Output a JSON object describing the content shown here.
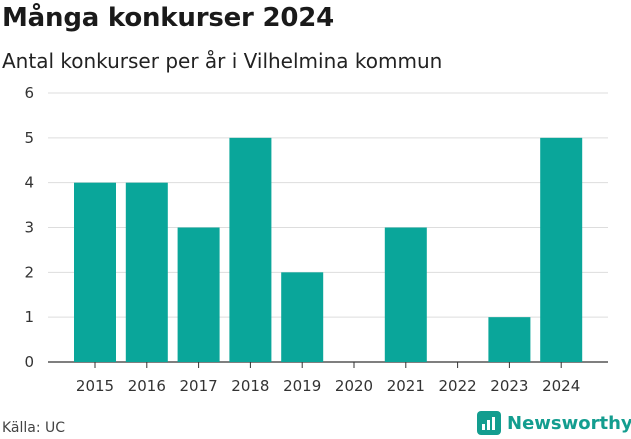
{
  "header": {
    "title": "Många konkurser 2024",
    "subtitle": "Antal konkurser per år i Vilhelmina kommun"
  },
  "footer": {
    "source": "Källa: UC",
    "brand": "Newsworthy"
  },
  "colors": {
    "bar": "#0aa69a",
    "grid": "#dddddd",
    "axis": "#333333",
    "brand": "#139d8f"
  },
  "chart_data": {
    "type": "bar",
    "categories": [
      "2015",
      "2016",
      "2017",
      "2018",
      "2019",
      "2020",
      "2021",
      "2022",
      "2023",
      "2024"
    ],
    "values": [
      4,
      4,
      3,
      5,
      2,
      0,
      3,
      0,
      1,
      5
    ],
    "ylim": [
      0,
      6
    ],
    "yticks": [
      0,
      1,
      2,
      3,
      4,
      5,
      6
    ],
    "grid": true,
    "legend": "none"
  }
}
